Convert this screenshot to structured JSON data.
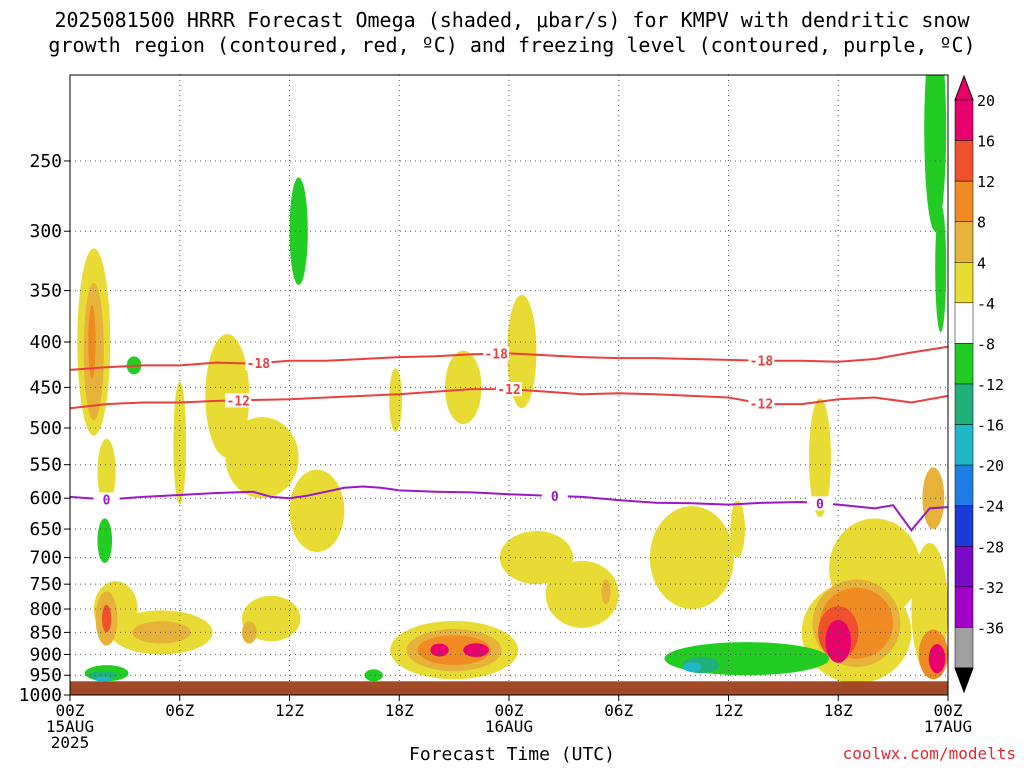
{
  "title_line1": "2025081500 HRRR Forecast Omega (shaded, μbar/s) for KMPV with dendritic snow",
  "title_line2": "growth region (contoured, red, ºC) and freezing level (contoured, purple, ºC)",
  "xlabel": "Forecast Time (UTC)",
  "credit": "coolwx.com/modelts",
  "chart_data": {
    "type": "heatmap",
    "variable": "Omega",
    "units": "μbar/s",
    "x_ticks": [
      {
        "hour": 0,
        "label": "00Z",
        "sub": "15AUG",
        "sub2": "2025"
      },
      {
        "hour": 6,
        "label": "06Z"
      },
      {
        "hour": 12,
        "label": "12Z"
      },
      {
        "hour": 18,
        "label": "18Z"
      },
      {
        "hour": 24,
        "label": "00Z",
        "sub": "16AUG"
      },
      {
        "hour": 30,
        "label": "06Z"
      },
      {
        "hour": 36,
        "label": "12Z"
      },
      {
        "hour": 42,
        "label": "18Z"
      },
      {
        "hour": 48,
        "label": "00Z",
        "sub": "17AUG"
      }
    ],
    "x_range_hours": [
      0,
      48
    ],
    "y_ticks_mb": [
      250,
      300,
      350,
      400,
      450,
      500,
      550,
      600,
      650,
      700,
      750,
      800,
      850,
      900,
      950,
      1000
    ],
    "y_range_mb": [
      200,
      1000
    ],
    "surface_pressure_mb": 965,
    "grid": true,
    "colorbar": [
      {
        "value": 20,
        "label": "20",
        "color": "#e8006c"
      },
      {
        "value": 16,
        "label": "16",
        "color": "#f0502c"
      },
      {
        "value": 12,
        "label": "12",
        "color": "#f08a22"
      },
      {
        "value": 8,
        "label": "8",
        "color": "#e6b23a"
      },
      {
        "value": 4,
        "label": "4",
        "color": "#e8dc34"
      },
      {
        "value": -4,
        "label": "-4",
        "color": "#ffffff"
      },
      {
        "value": -8,
        "label": "-8",
        "color": "#22cc22"
      },
      {
        "value": -12,
        "label": "-12",
        "color": "#20b07a"
      },
      {
        "value": -16,
        "label": "-16",
        "color": "#20b8c8"
      },
      {
        "value": -20,
        "label": "-20",
        "color": "#1e7ee6"
      },
      {
        "value": -24,
        "label": "-24",
        "color": "#1a3ad8"
      },
      {
        "value": -28,
        "label": "-28",
        "color": "#7a0ac8"
      },
      {
        "value": -32,
        "label": "-32",
        "color": "#a200c8"
      },
      {
        "value": -36,
        "label": "-36",
        "color": "#a0a0a0"
      }
    ],
    "omega_cells": [
      {
        "hour": 1.3,
        "mb": 400,
        "value": 4,
        "hw": 0.9,
        "hh": 110
      },
      {
        "hour": 1.3,
        "mb": 410,
        "value": 8,
        "hw": 0.55,
        "hh": 80
      },
      {
        "hour": 1.2,
        "mb": 400,
        "value": 12,
        "hw": 0.2,
        "hh": 40
      },
      {
        "hour": 2.0,
        "mb": 560,
        "value": 4,
        "hw": 0.5,
        "hh": 50
      },
      {
        "hour": 2.0,
        "mb": 820,
        "value": 8,
        "hw": 0.6,
        "hh": 60
      },
      {
        "hour": 2.0,
        "mb": 820,
        "value": 16,
        "hw": 0.25,
        "hh": 30
      },
      {
        "hour": 2.5,
        "mb": 800,
        "value": 4,
        "hw": 1.2,
        "hh": 60
      },
      {
        "hour": 5.0,
        "mb": 850,
        "value": 4,
        "hw": 2.8,
        "hh": 50
      },
      {
        "hour": 5.0,
        "mb": 850,
        "value": 8,
        "hw": 1.6,
        "hh": 25
      },
      {
        "hour": 6.0,
        "mb": 520,
        "value": 4,
        "hw": 0.35,
        "hh": 90
      },
      {
        "hour": 8.6,
        "mb": 460,
        "value": 4,
        "hw": 1.2,
        "hh": 80
      },
      {
        "hour": 10.5,
        "mb": 540,
        "value": 4,
        "hw": 2.0,
        "hh": 60
      },
      {
        "hour": 13.5,
        "mb": 620,
        "value": 4,
        "hw": 1.5,
        "hh": 70
      },
      {
        "hour": 11.0,
        "mb": 820,
        "value": 4,
        "hw": 1.6,
        "hh": 50
      },
      {
        "hour": 9.8,
        "mb": 850,
        "value": 8,
        "hw": 0.4,
        "hh": 25
      },
      {
        "hour": 17.8,
        "mb": 465,
        "value": 4,
        "hw": 0.35,
        "hh": 40
      },
      {
        "hour": 21.5,
        "mb": 450,
        "value": 4,
        "hw": 1.0,
        "hh": 45
      },
      {
        "hour": 24.7,
        "mb": 410,
        "value": 4,
        "hw": 0.8,
        "hh": 65
      },
      {
        "hour": 21.0,
        "mb": 890,
        "value": 4,
        "hw": 3.5,
        "hh": 70
      },
      {
        "hour": 21.0,
        "mb": 890,
        "value": 8,
        "hw": 2.6,
        "hh": 50
      },
      {
        "hour": 21.0,
        "mb": 890,
        "value": 12,
        "hw": 2.0,
        "hh": 35
      },
      {
        "hour": 20.2,
        "mb": 890,
        "value": 20,
        "hw": 0.5,
        "hh": 15
      },
      {
        "hour": 22.2,
        "mb": 890,
        "value": 20,
        "hw": 0.7,
        "hh": 16
      },
      {
        "hour": 25.5,
        "mb": 700,
        "value": 4,
        "hw": 2.0,
        "hh": 50
      },
      {
        "hour": 28.0,
        "mb": 770,
        "value": 4,
        "hw": 2.0,
        "hh": 70
      },
      {
        "hour": 29.3,
        "mb": 765,
        "value": 8,
        "hw": 0.25,
        "hh": 25
      },
      {
        "hour": 34.0,
        "mb": 700,
        "value": 4,
        "hw": 2.3,
        "hh": 100
      },
      {
        "hour": 36.5,
        "mb": 650,
        "value": 4,
        "hw": 0.4,
        "hh": 50
      },
      {
        "hour": 41.0,
        "mb": 540,
        "value": 4,
        "hw": 0.6,
        "hh": 90
      },
      {
        "hour": 44.0,
        "mb": 720,
        "value": 4,
        "hw": 2.5,
        "hh": 100
      },
      {
        "hour": 43.0,
        "mb": 850,
        "value": 4,
        "hw": 3.0,
        "hh": 120
      },
      {
        "hour": 43.0,
        "mb": 830,
        "value": 8,
        "hw": 2.4,
        "hh": 100
      },
      {
        "hour": 43.0,
        "mb": 830,
        "value": 12,
        "hw": 2.0,
        "hh": 80
      },
      {
        "hour": 42.0,
        "mb": 850,
        "value": 16,
        "hw": 1.1,
        "hh": 60
      },
      {
        "hour": 42.0,
        "mb": 870,
        "value": 20,
        "hw": 0.7,
        "hh": 50
      },
      {
        "hour": 47.0,
        "mb": 800,
        "value": 4,
        "hw": 1.0,
        "hh": 150
      },
      {
        "hour": 47.2,
        "mb": 600,
        "value": 8,
        "hw": 0.6,
        "hh": 50
      },
      {
        "hour": 47.2,
        "mb": 900,
        "value": 12,
        "hw": 0.8,
        "hh": 60
      },
      {
        "hour": 47.4,
        "mb": 910,
        "value": 20,
        "hw": 0.45,
        "hh": 35
      },
      {
        "hour": 2.0,
        "mb": 945,
        "value": -8,
        "hw": 1.2,
        "hh": 20
      },
      {
        "hour": 1.8,
        "mb": 950,
        "value": -12,
        "hw": 0.8,
        "hh": 10
      },
      {
        "hour": 1.8,
        "mb": 960,
        "value": -16,
        "hw": 0.5,
        "hh": 5
      },
      {
        "hour": 1.9,
        "mb": 670,
        "value": -8,
        "hw": 0.4,
        "hh": 40
      },
      {
        "hour": 3.5,
        "mb": 425,
        "value": -8,
        "hw": 0.4,
        "hh": 10
      },
      {
        "hour": 12.5,
        "mb": 300,
        "value": -8,
        "hw": 0.5,
        "hh": 45
      },
      {
        "hour": 16.6,
        "mb": 950,
        "value": -8,
        "hw": 0.5,
        "hh": 15
      },
      {
        "hour": 37.0,
        "mb": 910,
        "value": -8,
        "hw": 4.5,
        "hh": 40
      },
      {
        "hour": 34.5,
        "mb": 925,
        "value": -12,
        "hw": 1.0,
        "hh": 20
      },
      {
        "hour": 34.0,
        "mb": 930,
        "value": -16,
        "hw": 0.5,
        "hh": 12
      },
      {
        "hour": 47.3,
        "mb": 230,
        "value": -8,
        "hw": 0.6,
        "hh": 70
      },
      {
        "hour": 47.6,
        "mb": 330,
        "value": -8,
        "hw": 0.3,
        "hh": 60
      }
    ],
    "contours": [
      {
        "name": "dendritic_top",
        "label": "-18",
        "color": "#e8403c",
        "label_hours": [
          10.3,
          23.3,
          37.8
        ],
        "points": [
          [
            0,
            430
          ],
          [
            2,
            427
          ],
          [
            4,
            425
          ],
          [
            6,
            425
          ],
          [
            8,
            422
          ],
          [
            10,
            423
          ],
          [
            12,
            420
          ],
          [
            14,
            420
          ],
          [
            16,
            418
          ],
          [
            18,
            416
          ],
          [
            20,
            415
          ],
          [
            22,
            413
          ],
          [
            24,
            412
          ],
          [
            26,
            414
          ],
          [
            28,
            416
          ],
          [
            30,
            417
          ],
          [
            32,
            417
          ],
          [
            34,
            418
          ],
          [
            36,
            419
          ],
          [
            38,
            420
          ],
          [
            40,
            420
          ],
          [
            42,
            421
          ],
          [
            44,
            418
          ],
          [
            46,
            411
          ],
          [
            48,
            405
          ]
        ]
      },
      {
        "name": "dendritic_bottom",
        "label": "-12",
        "color": "#e8403c",
        "label_hours": [
          9.2,
          24.0,
          37.8
        ],
        "points": [
          [
            0,
            475
          ],
          [
            2,
            470
          ],
          [
            4,
            468
          ],
          [
            6,
            468
          ],
          [
            8,
            466
          ],
          [
            10,
            465
          ],
          [
            12,
            464
          ],
          [
            14,
            462
          ],
          [
            16,
            460
          ],
          [
            18,
            458
          ],
          [
            20,
            455
          ],
          [
            22,
            452
          ],
          [
            24,
            452
          ],
          [
            26,
            455
          ],
          [
            28,
            458
          ],
          [
            30,
            457
          ],
          [
            32,
            458
          ],
          [
            34,
            460
          ],
          [
            36,
            462
          ],
          [
            38,
            470
          ],
          [
            40,
            470
          ],
          [
            42,
            464
          ],
          [
            44,
            462
          ],
          [
            46,
            468
          ],
          [
            48,
            460
          ]
        ]
      },
      {
        "name": "freezing_level",
        "label": "0",
        "color": "#9a18c8",
        "label_hours": [
          2.0,
          26.5,
          41.0
        ],
        "points": [
          [
            0,
            598
          ],
          [
            2,
            602
          ],
          [
            3,
            600
          ],
          [
            4,
            598
          ],
          [
            6,
            595
          ],
          [
            8,
            592
          ],
          [
            10,
            590
          ],
          [
            11,
            598
          ],
          [
            12,
            600
          ],
          [
            13,
            596
          ],
          [
            14,
            590
          ],
          [
            15,
            584
          ],
          [
            16,
            582
          ],
          [
            17,
            584
          ],
          [
            18,
            588
          ],
          [
            20,
            590
          ],
          [
            22,
            591
          ],
          [
            24,
            594
          ],
          [
            26,
            596
          ],
          [
            28,
            598
          ],
          [
            30,
            603
          ],
          [
            32,
            607
          ],
          [
            34,
            608
          ],
          [
            36,
            610
          ],
          [
            38,
            607
          ],
          [
            40,
            606
          ],
          [
            42,
            610
          ],
          [
            44,
            616
          ],
          [
            45,
            611
          ],
          [
            46,
            652
          ],
          [
            47,
            616
          ],
          [
            48,
            614
          ]
        ]
      }
    ]
  }
}
